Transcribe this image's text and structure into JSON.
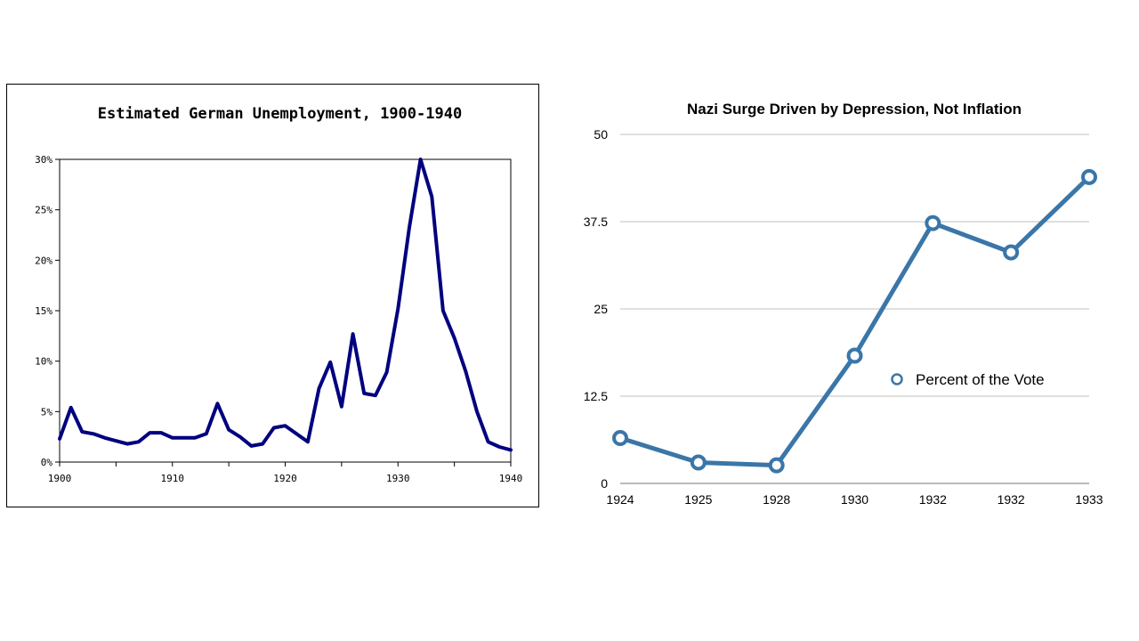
{
  "chart_data": [
    {
      "type": "line",
      "title": "Estimated German Unemployment, 1900-1940",
      "xlabel": "",
      "ylabel": "",
      "xlim": [
        1900,
        1940
      ],
      "ylim": [
        0,
        30
      ],
      "grid": false,
      "x_ticks": [
        "1900",
        "1910",
        "1920",
        "1930",
        "1940"
      ],
      "y_ticks": [
        "0%",
        "5%",
        "10%",
        "15%",
        "20%",
        "25%",
        "30%"
      ],
      "color": "#00007f",
      "series": [
        {
          "x": [
            1900,
            1901,
            1902,
            1903,
            1904,
            1905,
            1906,
            1907,
            1908,
            1909,
            1910,
            1911,
            1912,
            1913,
            1914,
            1915,
            1916,
            1917,
            1918,
            1919,
            1920,
            1921,
            1922,
            1923,
            1924,
            1925,
            1926,
            1927,
            1928,
            1929,
            1930,
            1931,
            1932,
            1933,
            1934,
            1935,
            1936,
            1937,
            1938,
            1939,
            1940
          ],
          "values": [
            2.3,
            5.4,
            3.0,
            2.8,
            2.4,
            2.1,
            1.8,
            2.0,
            2.9,
            2.9,
            2.4,
            2.4,
            2.4,
            2.8,
            5.8,
            3.2,
            2.5,
            1.6,
            1.8,
            3.4,
            3.6,
            2.8,
            2.0,
            7.3,
            9.9,
            5.5,
            12.7,
            6.8,
            6.6,
            8.9,
            15.2,
            23.2,
            30.0,
            26.3,
            15.0,
            12.3,
            9.0,
            5.0,
            2.0,
            1.5,
            1.2
          ]
        }
      ]
    },
    {
      "type": "line",
      "title": "Nazi Surge Driven by Depression, Not Inflation",
      "xlabel": "",
      "ylabel": "",
      "categories": [
        "1924",
        "1925",
        "1928",
        "1930",
        "1932",
        "1932",
        "1933"
      ],
      "ylim": [
        0,
        50
      ],
      "y_ticks": [
        "0",
        "12.5",
        "25",
        "37.5",
        "50"
      ],
      "grid": true,
      "legend": "center-right",
      "color": "#3a76a8",
      "series": [
        {
          "name": "Percent of the Vote",
          "values": [
            6.5,
            3.0,
            2.6,
            18.3,
            37.3,
            33.1,
            43.9
          ]
        }
      ]
    }
  ]
}
